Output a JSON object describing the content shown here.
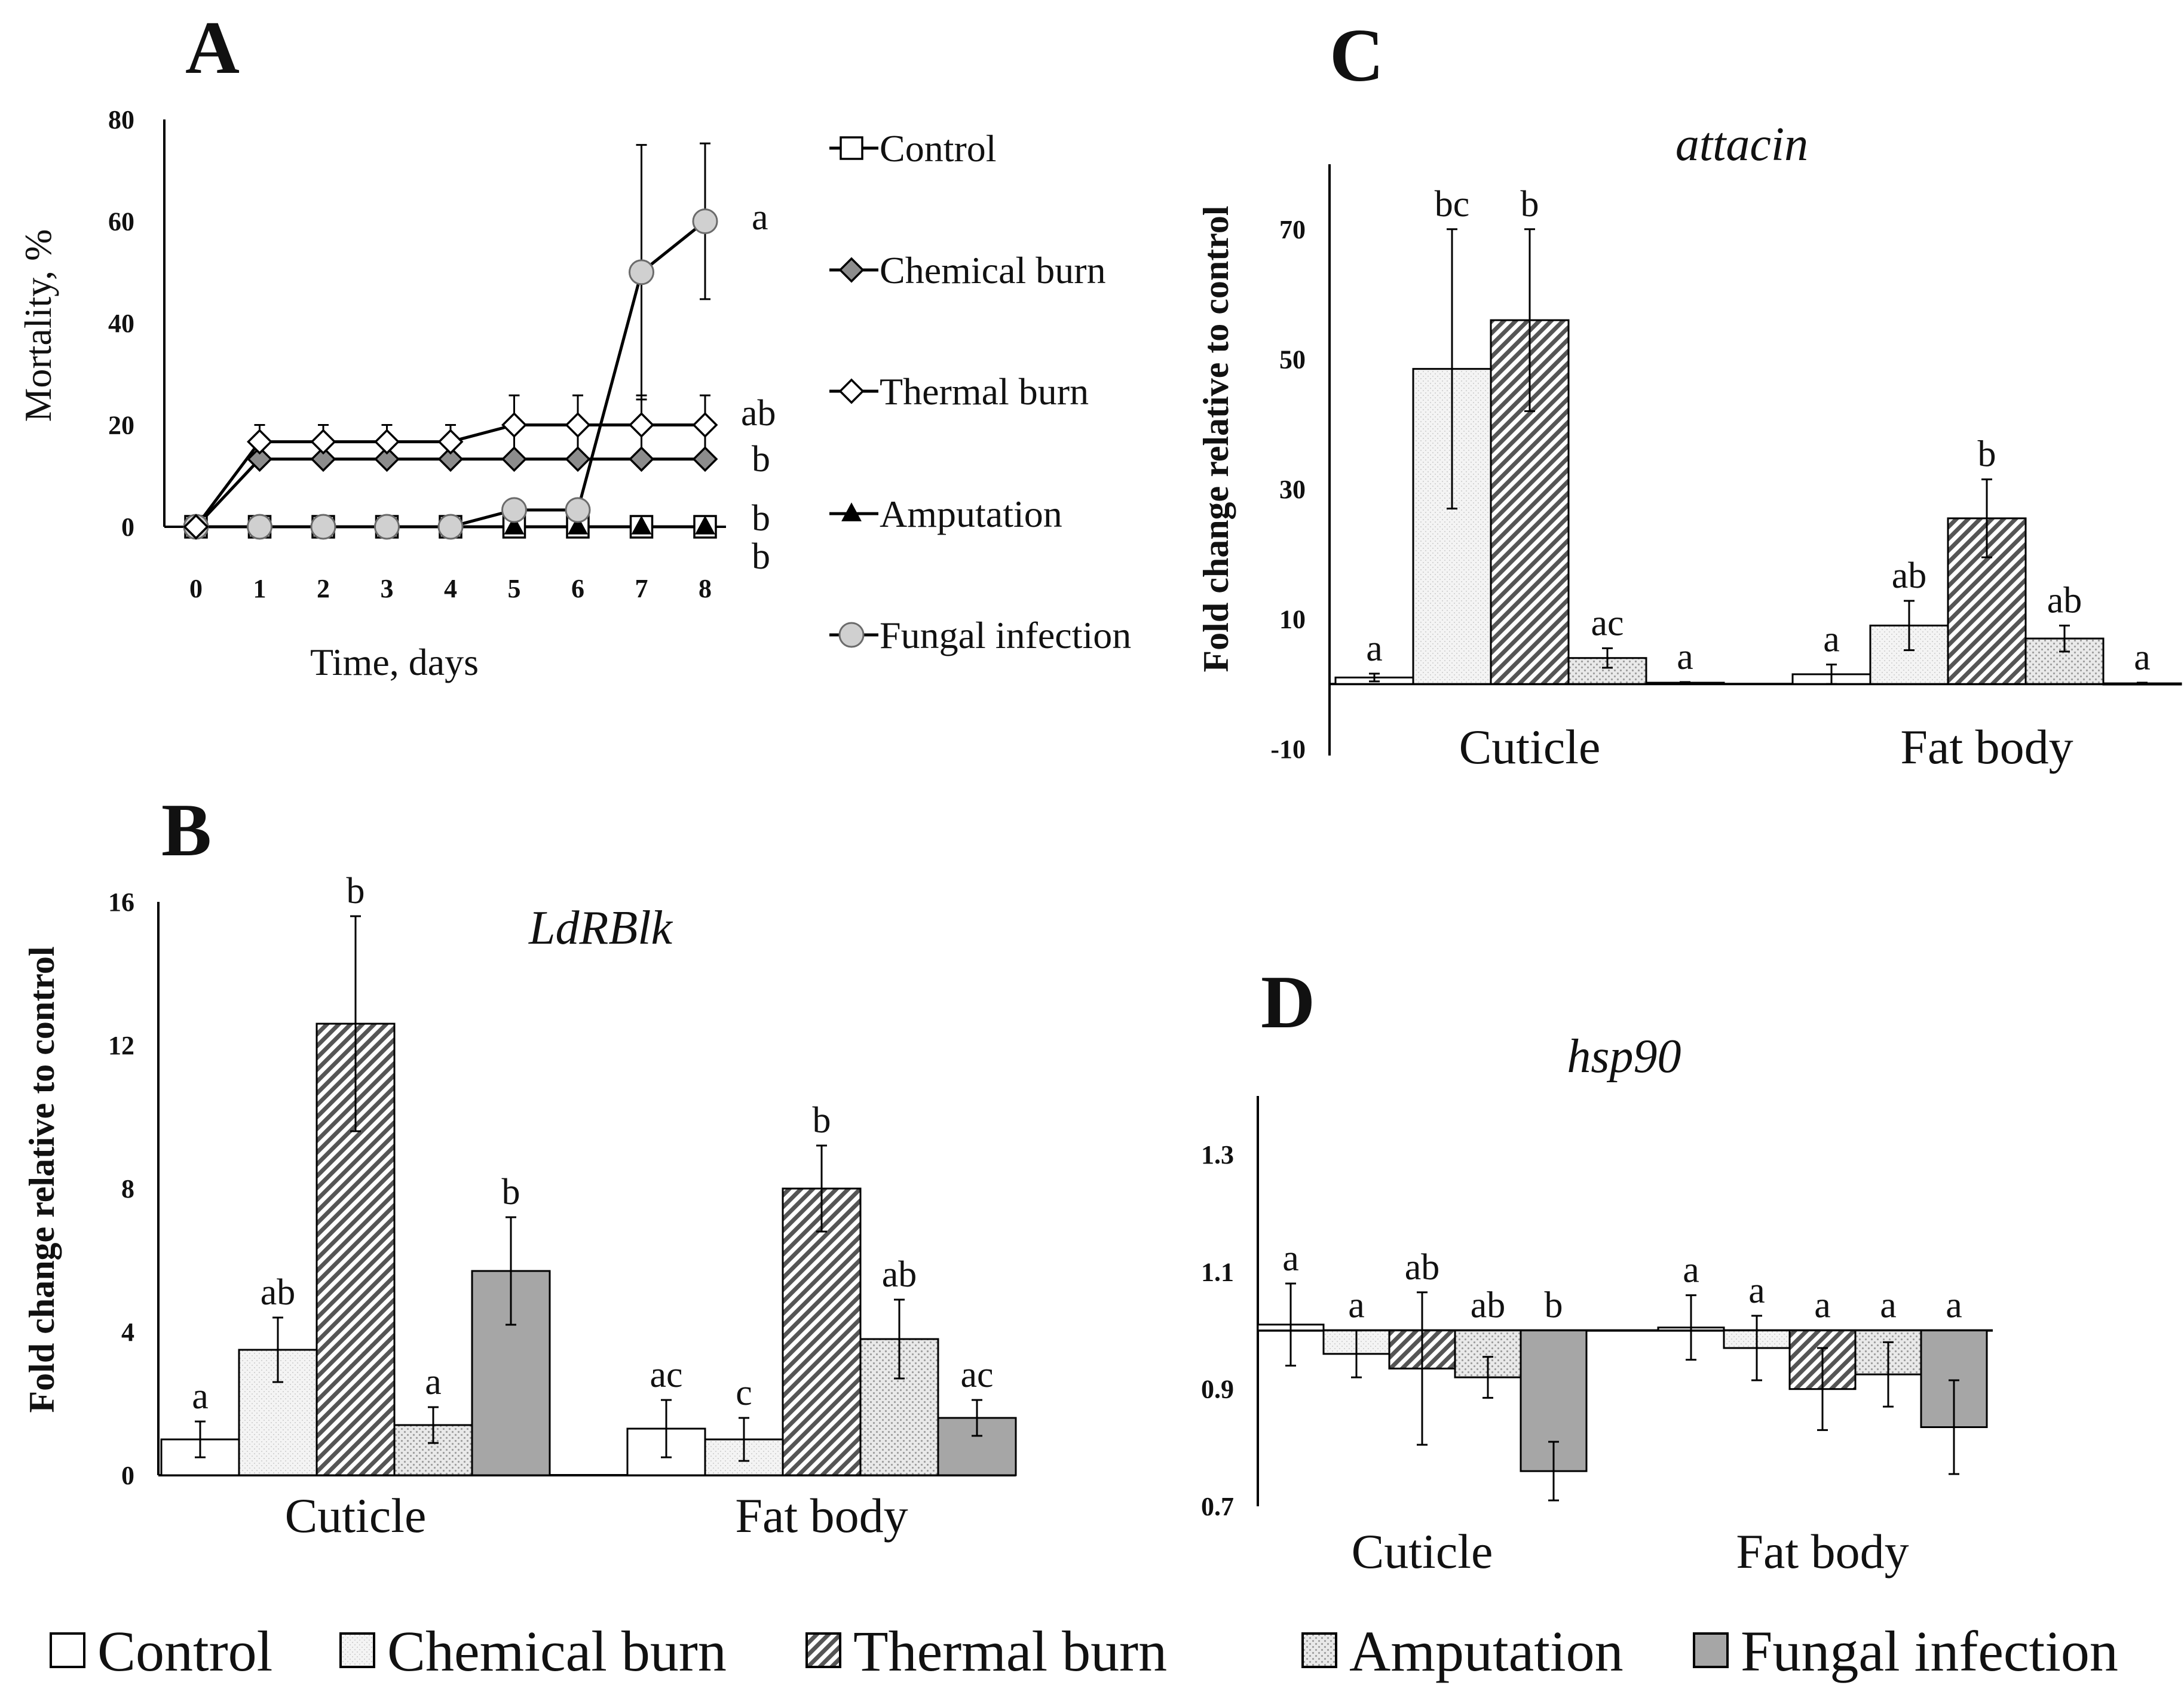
{
  "colors": {
    "control": "#ffffff",
    "chemical_burn": "#f3f3f3",
    "thermal_burn": "#9a9a9a",
    "amputation": "#e0e0e0",
    "fungal_infection": "#a6a6a6",
    "line": "#000000"
  },
  "legend_bottom": [
    "Control",
    "Chemical burn",
    "Thermal burn",
    "Amputation",
    "Fungal infection"
  ],
  "chart_data": [
    {
      "panel": "A",
      "type": "line",
      "title": "",
      "xlabel": "Time, days",
      "ylabel": "Mortality, %",
      "x": [
        0,
        1,
        2,
        3,
        4,
        5,
        6,
        7,
        8
      ],
      "xlim": [
        0,
        8
      ],
      "ylim": [
        0,
        80
      ],
      "yticks": [
        0,
        20,
        40,
        60,
        80
      ],
      "legend": [
        "Control",
        "Chemical burn",
        "Thermal burn",
        "Amputation",
        "Fungal infection"
      ],
      "series": [
        {
          "name": "Control",
          "marker": "square",
          "values": [
            0,
            0,
            0,
            0,
            0,
            0,
            0,
            0,
            0
          ],
          "errors": [
            0,
            0,
            0,
            0,
            0,
            0,
            0,
            0,
            0
          ],
          "sig": "b"
        },
        {
          "name": "Chemical burn",
          "marker": "diamond-gray",
          "values": [
            0,
            13.3,
            13.3,
            13.3,
            13.3,
            13.3,
            13.3,
            13.3,
            13.3
          ],
          "errors": [
            0,
            0,
            0,
            0,
            0,
            0,
            0,
            0,
            0
          ],
          "sig": "b"
        },
        {
          "name": "Thermal burn",
          "marker": "diamond-white",
          "values": [
            0,
            16.7,
            16.7,
            16.7,
            16.7,
            20,
            20,
            20,
            20
          ],
          "errors": [
            0,
            3.3,
            3.3,
            3.3,
            3.3,
            5.8,
            5.8,
            5.8,
            5.8
          ],
          "sig": "ab"
        },
        {
          "name": "Amputation",
          "marker": "triangle",
          "values": [
            0,
            0,
            0,
            0,
            0,
            0,
            0,
            0,
            0
          ],
          "errors": [
            0,
            0,
            0,
            0,
            0,
            0,
            0,
            0,
            0
          ],
          "sig": "b"
        },
        {
          "name": "Fungal infection",
          "marker": "circle",
          "values": [
            0,
            0,
            0,
            0,
            0,
            3.3,
            3.3,
            50,
            60
          ],
          "errors": [
            0,
            0,
            0,
            0,
            0,
            0,
            0,
            25,
            15.3
          ],
          "sig": "a"
        }
      ]
    },
    {
      "panel": "B",
      "type": "bar",
      "title": "LdRBlk",
      "ylabel": "Fold change relative to control",
      "categories": [
        "Cuticle",
        "Fat body"
      ],
      "ylim": [
        0,
        16
      ],
      "yticks": [
        0,
        4,
        8,
        12,
        16
      ],
      "series": [
        {
          "name": "Control",
          "values": [
            1,
            1.3
          ],
          "errors": [
            0.5,
            0.8
          ],
          "sig": [
            "a",
            "ac"
          ]
        },
        {
          "name": "Chemical burn",
          "values": [
            3.5,
            1
          ],
          "errors": [
            0.9,
            0.6
          ],
          "sig": [
            "ab",
            "c"
          ]
        },
        {
          "name": "Thermal burn",
          "values": [
            12.6,
            8
          ],
          "errors": [
            3,
            1.2
          ],
          "sig": [
            "b",
            "b"
          ]
        },
        {
          "name": "Amputation",
          "values": [
            1.4,
            3.8
          ],
          "errors": [
            0.5,
            1.1
          ],
          "sig": [
            "a",
            "ab"
          ]
        },
        {
          "name": "Fungal infection",
          "values": [
            5.7,
            1.6
          ],
          "errors": [
            1.5,
            0.5
          ],
          "sig": [
            "b",
            "ac"
          ]
        }
      ]
    },
    {
      "panel": "C",
      "type": "bar",
      "title": "attacin",
      "ylabel": "Fold change relative to control",
      "categories": [
        "Cuticle",
        "Fat body"
      ],
      "ylim": [
        -10,
        80
      ],
      "yticks": [
        -10,
        10,
        30,
        50,
        70
      ],
      "series": [
        {
          "name": "Control",
          "values": [
            1,
            1.5
          ],
          "errors": [
            0.6,
            1.5
          ],
          "sig": [
            "a",
            "a"
          ]
        },
        {
          "name": "Chemical burn",
          "values": [
            48.5,
            9
          ],
          "errors": [
            21.5,
            3.8
          ],
          "sig": [
            "bc",
            "ab"
          ]
        },
        {
          "name": "Thermal burn",
          "values": [
            56,
            25.5
          ],
          "errors": [
            14,
            6
          ],
          "sig": [
            "b",
            "b"
          ]
        },
        {
          "name": "Amputation",
          "values": [
            4,
            7
          ],
          "errors": [
            1.5,
            2
          ],
          "sig": [
            "ac",
            "ab"
          ]
        },
        {
          "name": "Fungal infection",
          "values": [
            0.2,
            0.1
          ],
          "errors": [
            0.1,
            0.1
          ],
          "sig": [
            "a",
            "a"
          ]
        }
      ]
    },
    {
      "panel": "D",
      "type": "bar",
      "title": "hsp90",
      "ylabel": "",
      "categories": [
        "Cuticle",
        "Fat body"
      ],
      "ylim": [
        0.7,
        1.4
      ],
      "yticks": [
        0.7,
        0.9,
        1.1,
        1.3
      ],
      "baseline": 1.0,
      "series": [
        {
          "name": "Control",
          "values": [
            1.01,
            1.005
          ],
          "errors": [
            0.07,
            0.055
          ],
          "sig": [
            "a",
            "a"
          ]
        },
        {
          "name": "Chemical burn",
          "values": [
            0.96,
            0.97
          ],
          "errors": [
            0.04,
            0.055
          ],
          "sig": [
            "a",
            "a"
          ]
        },
        {
          "name": "Thermal burn",
          "values": [
            0.935,
            0.9
          ],
          "errors": [
            0.13,
            0.07
          ],
          "sig": [
            "ab",
            "a"
          ]
        },
        {
          "name": "Amputation",
          "values": [
            0.92,
            0.925
          ],
          "errors": [
            0.035,
            0.055
          ],
          "sig": [
            "ab",
            "a"
          ]
        },
        {
          "name": "Fungal infection",
          "values": [
            0.76,
            0.835
          ],
          "errors": [
            0.05,
            0.08
          ],
          "sig": [
            "b",
            "a"
          ]
        }
      ]
    }
  ]
}
